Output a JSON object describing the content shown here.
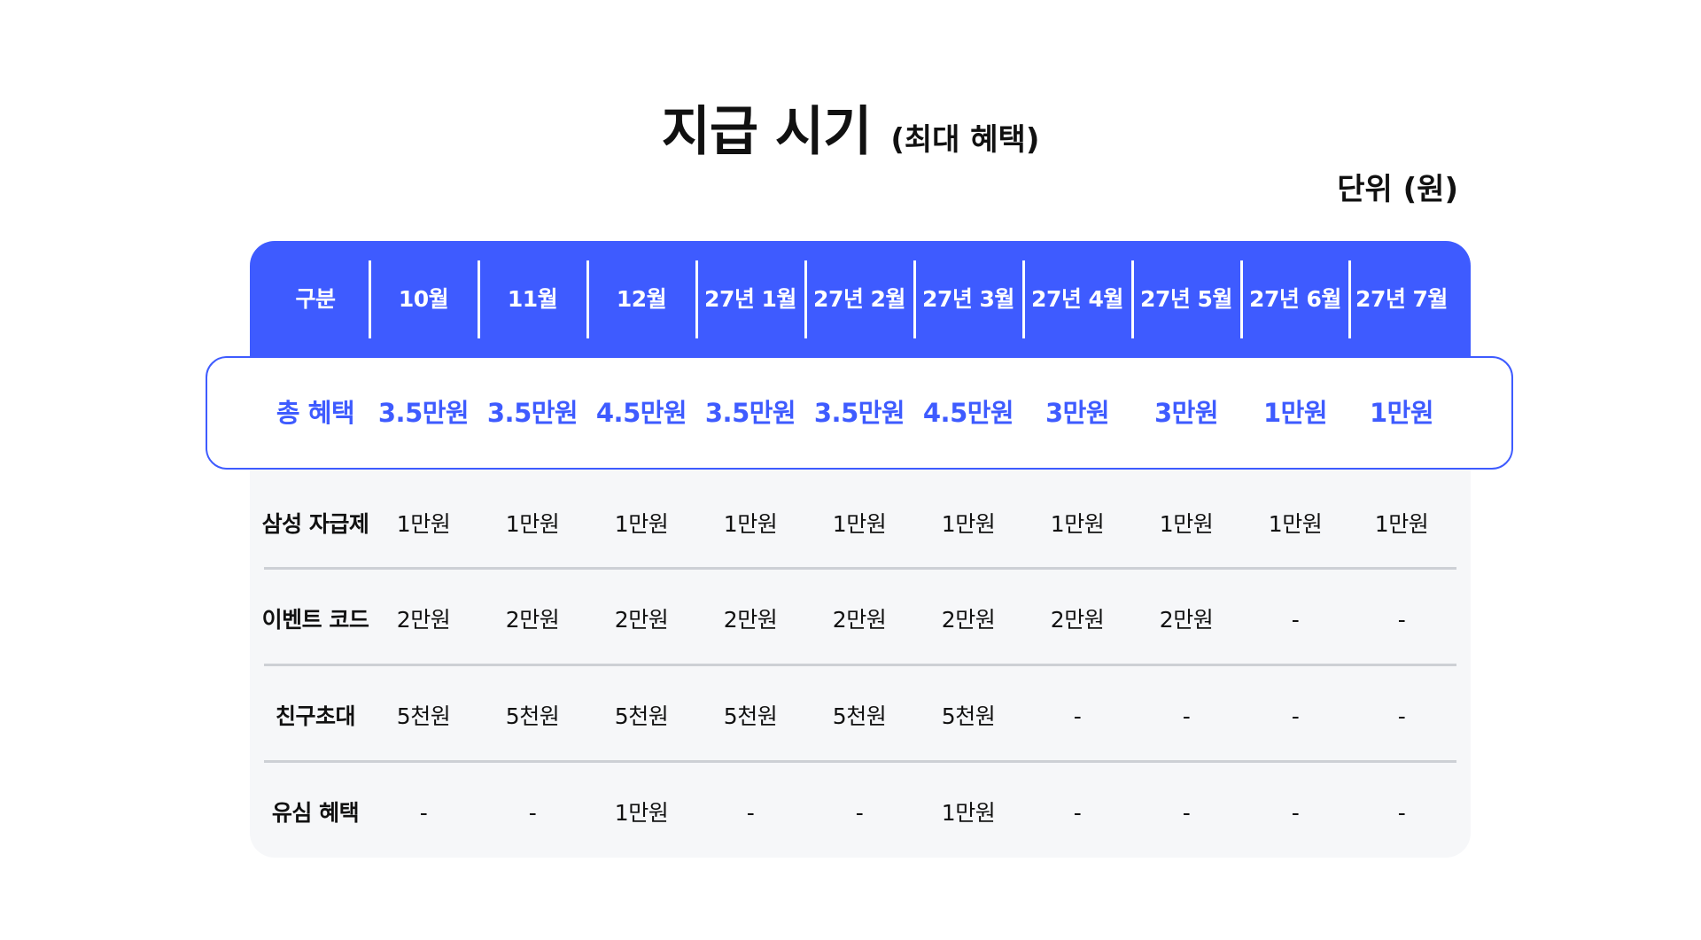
{
  "title": {
    "main": "지급 시기",
    "sub": "(최대 혜택)"
  },
  "unit_label": "단위 (원)",
  "colors": {
    "accent": "#3e5bff",
    "table_background": "#f6f7f9",
    "divider": "#cdd0d5"
  },
  "table": {
    "header": [
      "구분",
      "10월",
      "11월",
      "12월",
      "27년 1월",
      "27년 2월",
      "27년 3월",
      "27년 4월",
      "27년 5월",
      "27년 6월",
      "27년 7월"
    ],
    "total_row": [
      "총 혜택",
      "3.5만원",
      "3.5만원",
      "4.5만원",
      "3.5만원",
      "3.5만원",
      "4.5만원",
      "3만원",
      "3만원",
      "1만원",
      "1만원"
    ],
    "rows": [
      [
        "삼성 자급제",
        "1만원",
        "1만원",
        "1만원",
        "1만원",
        "1만원",
        "1만원",
        "1만원",
        "1만원",
        "1만원",
        "1만원"
      ],
      [
        "이벤트 코드",
        "2만원",
        "2만원",
        "2만원",
        "2만원",
        "2만원",
        "2만원",
        "2만원",
        "2만원",
        "-",
        "-"
      ],
      [
        "친구초대",
        "5천원",
        "5천원",
        "5천원",
        "5천원",
        "5천원",
        "5천원",
        "-",
        "-",
        "-",
        "-"
      ],
      [
        "유심 혜택",
        "-",
        "-",
        "1만원",
        "-",
        "-",
        "1만원",
        "-",
        "-",
        "-",
        "-"
      ]
    ]
  }
}
